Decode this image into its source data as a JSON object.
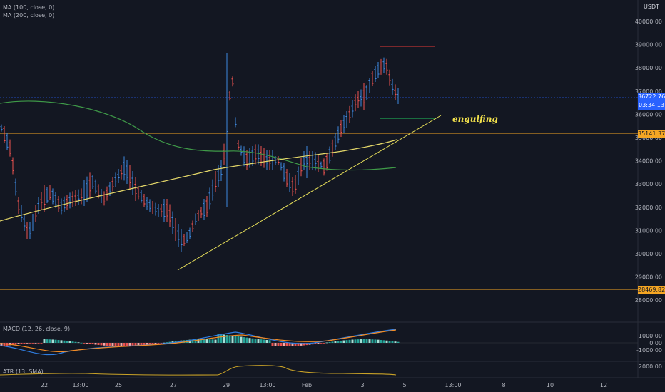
{
  "indicators": {
    "ma100": "MA (100, close, 0)",
    "ma200": "MA (200, close, 0)",
    "macd": "MACD (12, 26, close, 9)",
    "atr": "ATR (13, SMA)"
  },
  "price_axis": {
    "currency": "USDT",
    "ticks": [
      "40000.00",
      "39000.00",
      "38000.00",
      "37000.00",
      "36000.00",
      "35000.00",
      "34000.00",
      "33000.00",
      "32000.00",
      "31000.00",
      "30000.00",
      "29000.00",
      "28000.00"
    ]
  },
  "tags": {
    "last_price": "36722.76",
    "countdown": "03:34:13",
    "resistance": "35141.37",
    "support": "28469.82"
  },
  "macd_axis": [
    "1000.00",
    "0.00",
    "-1000.00"
  ],
  "atr_axis": [
    "2000.00"
  ],
  "time_axis": [
    "22",
    "13:00",
    "25",
    "27",
    "29",
    "13:00",
    "Feb",
    "3",
    "5",
    "13:00",
    "8",
    "10",
    "12"
  ],
  "annotation": "engulfing",
  "colors": {
    "bull": "#3e89e0",
    "bear": "#ef5350",
    "ma100": "#3f9a48",
    "ma200": "#e6d96a",
    "hline": "#f5a623",
    "trend": "#e8e05a",
    "engulf_level": "#22c55e",
    "high_level": "#e53935",
    "last": "#2962ff",
    "macd": "#2f7de1",
    "signal": "#f08a24",
    "atr": "#c9a227"
  }
}
